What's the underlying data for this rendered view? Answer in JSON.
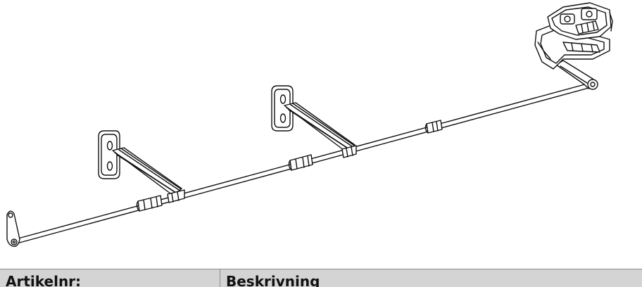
{
  "table": {
    "headers": [
      "Artikelnr:",
      "Beskrivning"
    ]
  },
  "drawing": {
    "parts": [
      "bracket-1",
      "bracket-2",
      "mount-end",
      "rod",
      "end-plate",
      "coupling-1",
      "coupling-2",
      "coupling-3"
    ]
  }
}
